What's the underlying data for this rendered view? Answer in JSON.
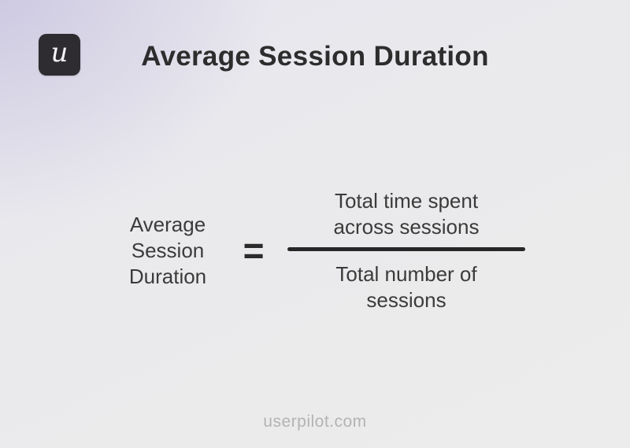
{
  "page": {
    "title": "Average Session Duration",
    "footer": "userpilot.com"
  },
  "logo": {
    "letter": "u",
    "background_color": "#2f2c31",
    "letter_color": "#f5f4f6"
  },
  "formula": {
    "lhs_lines": [
      "Average",
      "Session",
      "Duration"
    ],
    "equals": "=",
    "numerator_lines": [
      "Total time spent",
      "across sessions"
    ],
    "denominator_lines": [
      "Total number of",
      "sessions"
    ]
  },
  "colors": {
    "title_text": "#2d2d2d",
    "formula_text": "#3b3b3b",
    "fraction_bar": "#272727",
    "footer_text": "#b4b3b4",
    "background_tint": "#dbd8e8",
    "background_base": "#ebebec"
  }
}
